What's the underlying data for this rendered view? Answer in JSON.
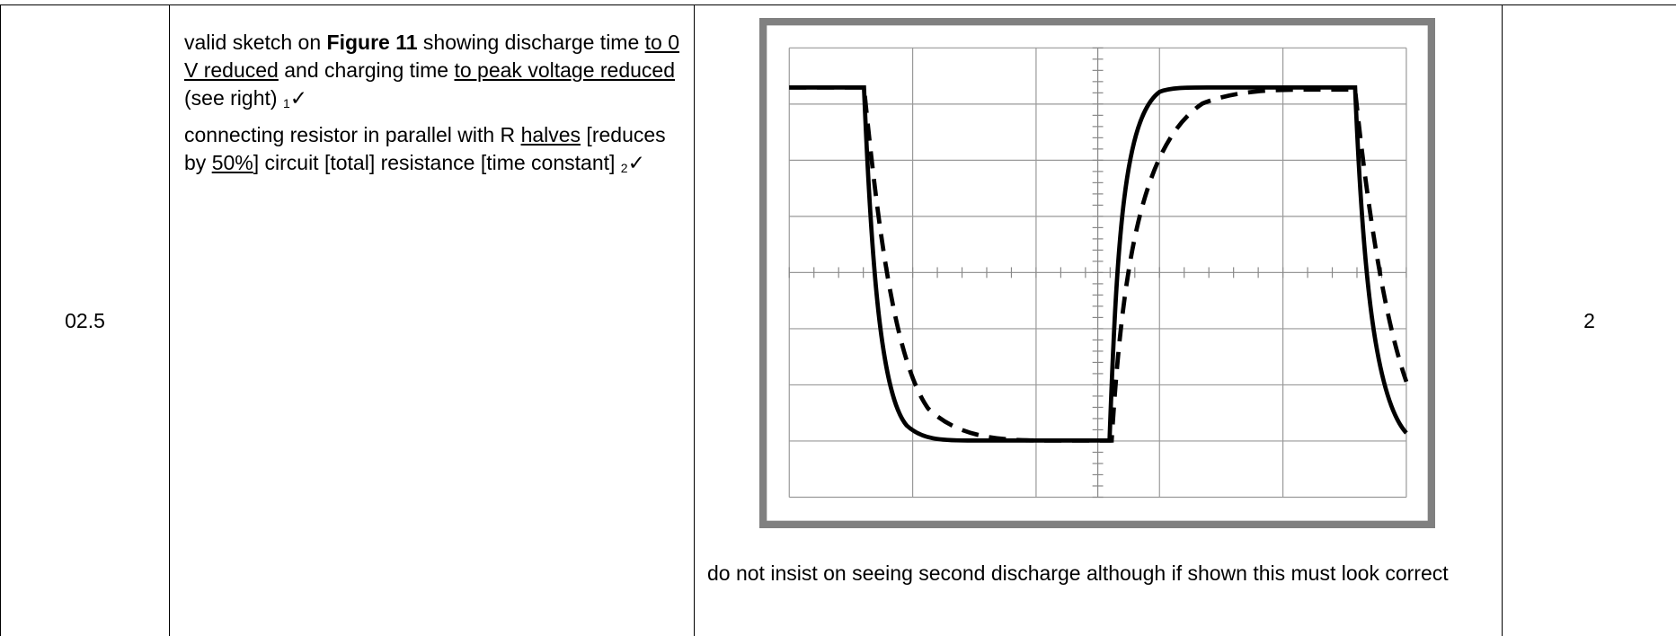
{
  "row": {
    "question": "02.5",
    "answer": {
      "paragraphs": [
        [
          "valid sketch on ",
          "Figure 11",
          " showing discharge time ",
          "to 0 V reduced",
          " and charging time ",
          "to peak voltage reduced",
          " (see right) ",
          "1",
          "✓"
        ],
        [
          "connecting resistor in parallel with R ",
          "halves",
          " [reduces by ",
          "50%",
          "] circuit [total] resistance [time constant] ",
          "2",
          "✓"
        ]
      ],
      "figure_note": "do not insist on seeing second discharge although if shown this must look correct"
    },
    "marks": "2"
  }
}
